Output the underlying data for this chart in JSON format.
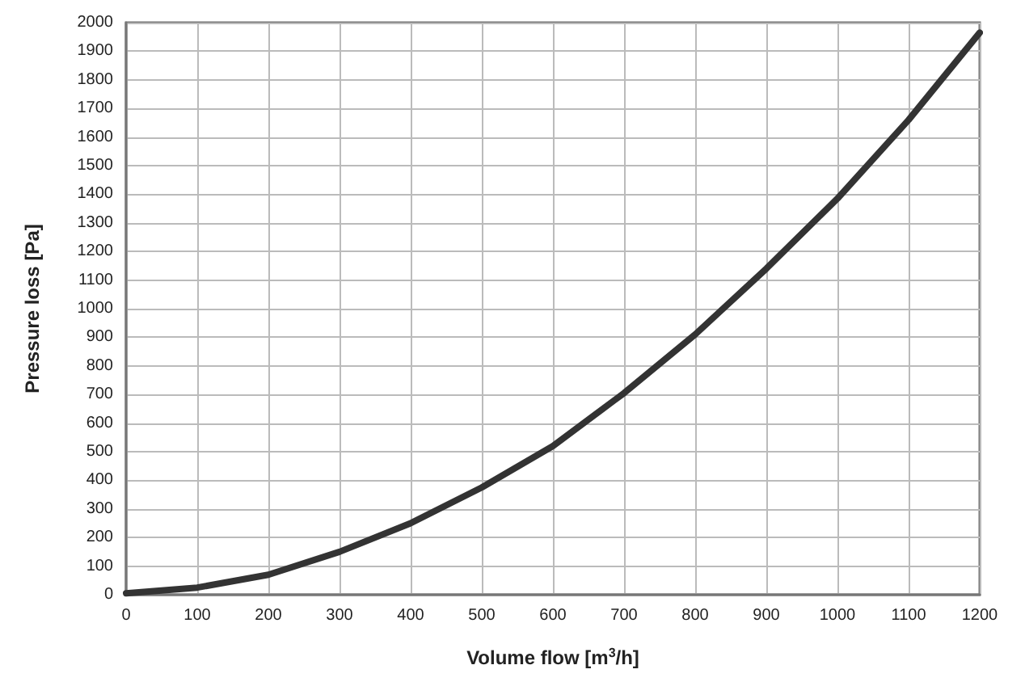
{
  "chart_data": {
    "type": "line",
    "xlabel": "Volume flow [m$^{3}$/h]",
    "ylabel": "Pressure loss [Pa]",
    "x": [
      0,
      100,
      200,
      300,
      400,
      500,
      600,
      700,
      800,
      900,
      1000,
      1100,
      1200
    ],
    "series": [
      {
        "color": "#333333",
        "values": [
          5,
          25,
          70,
          150,
          250,
          375,
          520,
          705,
          910,
          1140,
          1385,
          1660,
          1965
        ]
      }
    ],
    "xlim": [
      0,
      1200
    ],
    "xticks": [
      0,
      100,
      200,
      300,
      400,
      500,
      600,
      700,
      800,
      900,
      1000,
      1100,
      1200
    ],
    "ylim": [
      0,
      2000
    ],
    "yticks": [
      0,
      100,
      200,
      300,
      400,
      500,
      600,
      700,
      800,
      900,
      1000,
      1100,
      1200,
      1300,
      1400,
      1500,
      1600,
      1700,
      1800,
      1900,
      2000
    ],
    "grid": true,
    "marker": "none",
    "line_style": "solid"
  }
}
